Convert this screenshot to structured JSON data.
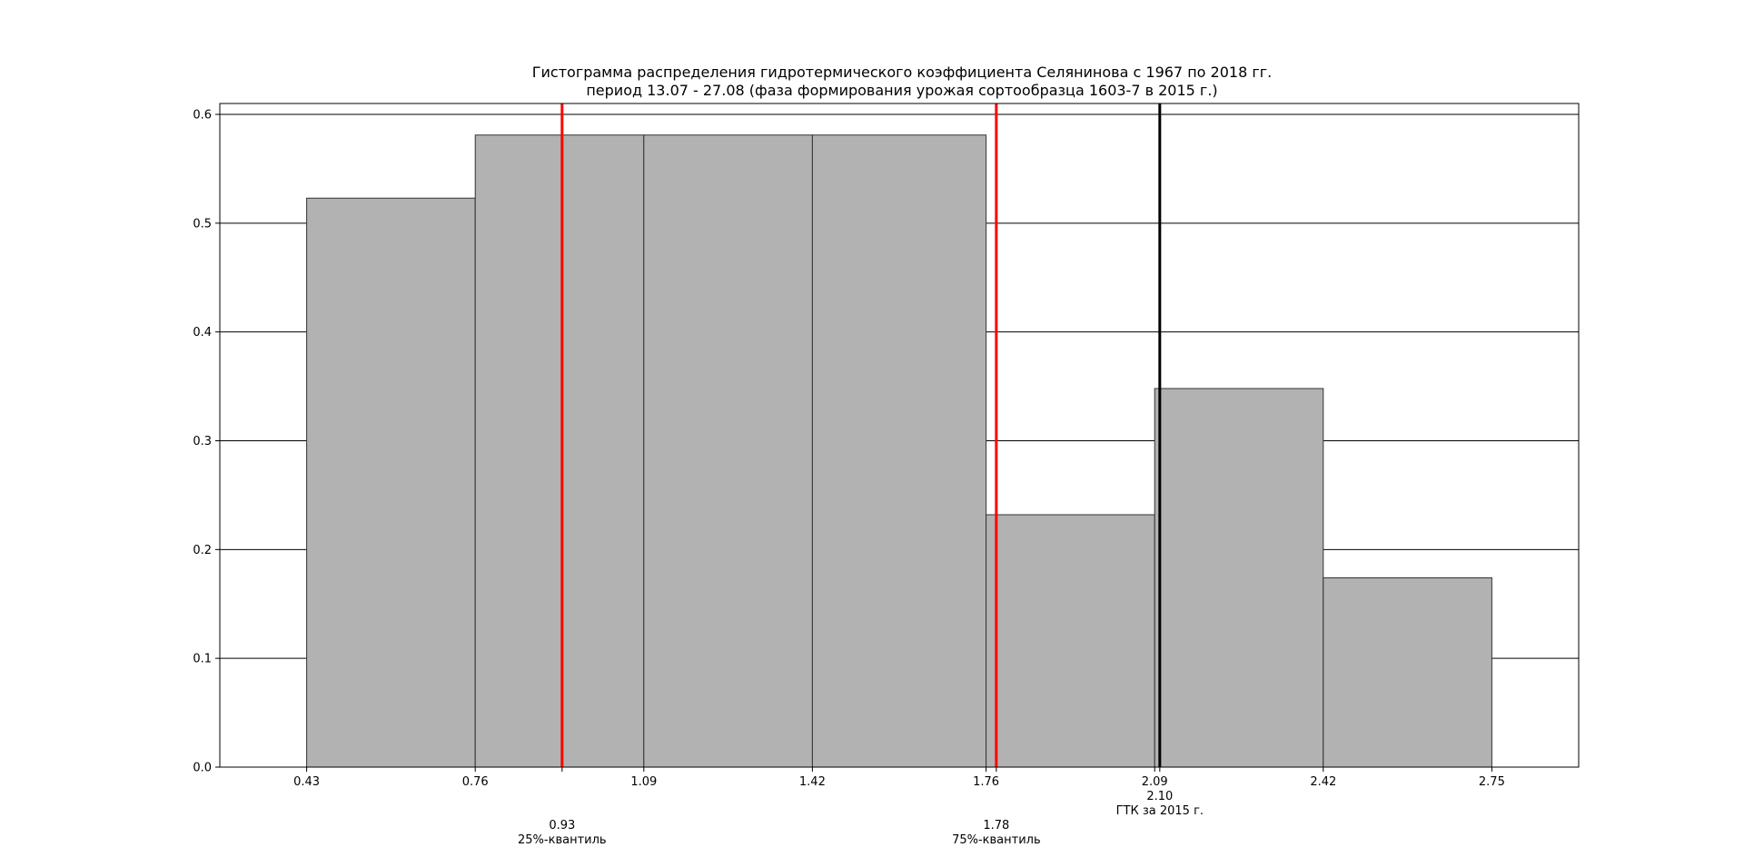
{
  "chart_data": {
    "type": "bar",
    "title": "Гистограмма распределения гидротермического коэффициента Селянинова с 1967 по 2018 гг.",
    "subtitle": "период 13.07 - 27.08 (фаза формирования урожая сортообразца 1603-7 в 2015 г.)",
    "xlim": [
      0.26,
      2.92
    ],
    "ylim": [
      0,
      0.61
    ],
    "xticks": [
      "0.43",
      "0.76",
      "1.09",
      "1.42",
      "1.76",
      "2.09",
      "2.42",
      "2.75"
    ],
    "yticks": [
      "0.0",
      "0.1",
      "0.2",
      "0.3",
      "0.4",
      "0.5",
      "0.6"
    ],
    "grid": "horizontal",
    "bins": [
      {
        "x0": 0.43,
        "x1": 0.76,
        "value": 0.523
      },
      {
        "x0": 0.76,
        "x1": 1.09,
        "value": 0.581
      },
      {
        "x0": 1.09,
        "x1": 1.42,
        "value": 0.581
      },
      {
        "x0": 1.42,
        "x1": 1.76,
        "value": 0.581
      },
      {
        "x0": 1.76,
        "x1": 2.09,
        "value": 0.232
      },
      {
        "x0": 2.09,
        "x1": 2.42,
        "value": 0.348
      },
      {
        "x0": 2.42,
        "x1": 2.75,
        "value": 0.174
      }
    ],
    "bar_color": "#b2b2b2",
    "bar_edge_color": "#333333",
    "vlines": [
      {
        "x": 0.93,
        "value_label": "0.93",
        "label": "25%-квантиль",
        "color": "#ff0000"
      },
      {
        "x": 1.78,
        "value_label": "1.78",
        "label": "75%-квантиль",
        "color": "#ff0000"
      },
      {
        "x": 2.1,
        "value_label": "2.10",
        "label": "ГТК за 2015 г.",
        "color": "#000000"
      }
    ]
  }
}
